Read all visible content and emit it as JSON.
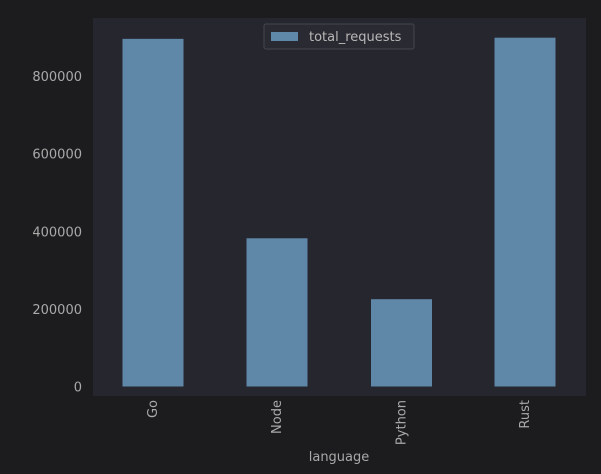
{
  "chart_data": {
    "type": "bar",
    "categories": [
      "Go",
      "Node",
      "Python",
      "Rust"
    ],
    "series": [
      {
        "name": "total_requests",
        "values": [
          896000,
          382000,
          225000,
          899000
        ]
      }
    ],
    "xlabel": "language",
    "ylabel": "",
    "ylim": [
      0,
      900000
    ],
    "yticks": [
      0,
      200000,
      400000,
      600000,
      800000
    ],
    "ytick_labels": [
      "0",
      "200000",
      "400000",
      "600000",
      "800000"
    ],
    "grid": false,
    "legend": "top-center",
    "colors": {
      "figure_background": "#1c1c1e",
      "plot_background": "#26262f",
      "bar": "#5f87a8",
      "legend_background": "#2a2a32",
      "legend_border": "#45454d",
      "text": "#a9a9a9"
    }
  }
}
